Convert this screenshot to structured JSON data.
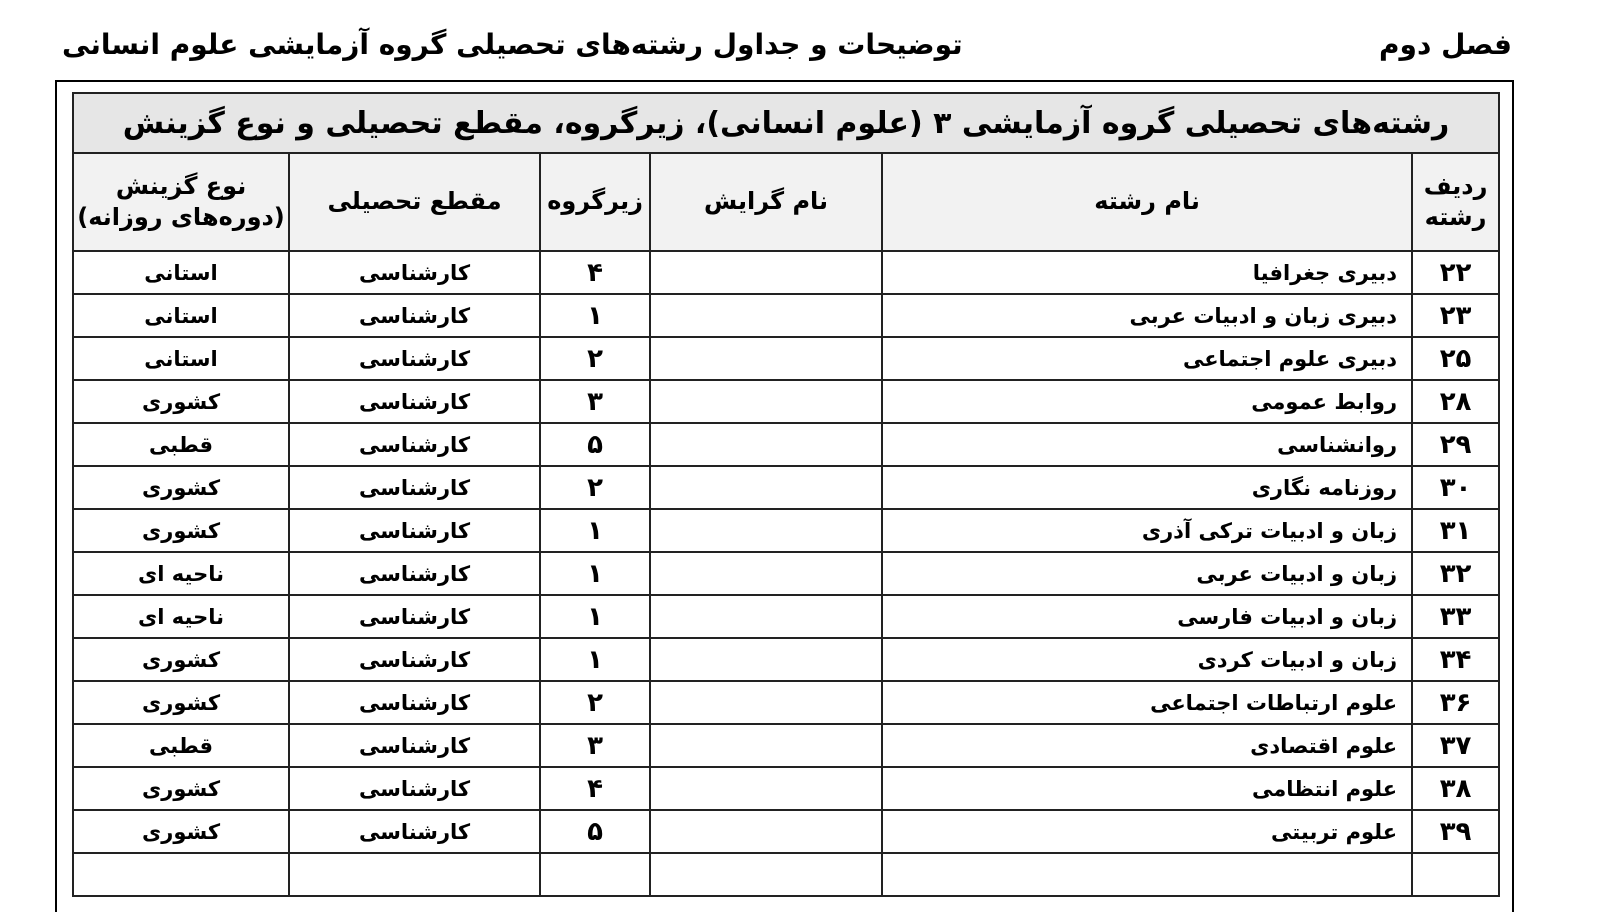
{
  "header": {
    "chapter": "فصل دوم",
    "running_title": "توضیحات و جداول رشته‌های تحصیلی گروه آزمایشی علوم انسانی"
  },
  "table": {
    "title": "رشته‌های تحصیلی گروه آزمایشی ۳ (علوم انسانی)، زیرگروه، مقطع تحصیلی و نوع گزینش",
    "columns": [
      "ردیف رشته",
      "نام رشته",
      "نام گرایش",
      "زیرگروه",
      "مقطع تحصیلی",
      "نوع گزینش (دوره‌های روزانه)"
    ],
    "rows": [
      {
        "id": "۲۲",
        "name": "دبیری جغرافیا",
        "branch": "",
        "subgroup": "۴",
        "level": "کارشناسی",
        "selection": "استانی"
      },
      {
        "id": "۲۳",
        "name": "دبیری زبان و ادبیات عربی",
        "branch": "",
        "subgroup": "۱",
        "level": "کارشناسی",
        "selection": "استانی"
      },
      {
        "id": "۲۵",
        "name": "دبیری علوم اجتماعی",
        "branch": "",
        "subgroup": "۲",
        "level": "کارشناسی",
        "selection": "استانی"
      },
      {
        "id": "۲۸",
        "name": "روابط عمومی",
        "branch": "",
        "subgroup": "۳",
        "level": "کارشناسی",
        "selection": "کشوری"
      },
      {
        "id": "۲۹",
        "name": "روانشناسی",
        "branch": "",
        "subgroup": "۵",
        "level": "کارشناسی",
        "selection": "قطبی"
      },
      {
        "id": "۳۰",
        "name": "روزنامه نگاری",
        "branch": "",
        "subgroup": "۲",
        "level": "کارشناسی",
        "selection": "کشوری"
      },
      {
        "id": "۳۱",
        "name": "زبان و ادبیات ترکی آذری",
        "branch": "",
        "subgroup": "۱",
        "level": "کارشناسی",
        "selection": "کشوری"
      },
      {
        "id": "۳۲",
        "name": "زبان و ادبیات عربی",
        "branch": "",
        "subgroup": "۱",
        "level": "کارشناسی",
        "selection": "ناحیه ای"
      },
      {
        "id": "۳۳",
        "name": "زبان و ادبیات فارسی",
        "branch": "",
        "subgroup": "۱",
        "level": "کارشناسی",
        "selection": "ناحیه ای"
      },
      {
        "id": "۳۴",
        "name": "زبان و ادبیات کردی",
        "branch": "",
        "subgroup": "۱",
        "level": "کارشناسی",
        "selection": "کشوری"
      },
      {
        "id": "۳۶",
        "name": "علوم ارتباطات اجتماعی",
        "branch": "",
        "subgroup": "۲",
        "level": "کارشناسی",
        "selection": "کشوری"
      },
      {
        "id": "۳۷",
        "name": "علوم اقتصادی",
        "branch": "",
        "subgroup": "۳",
        "level": "کارشناسی",
        "selection": "قطبی"
      },
      {
        "id": "۳۸",
        "name": "علوم انتظامی",
        "branch": "",
        "subgroup": "۴",
        "level": "کارشناسی",
        "selection": "کشوری"
      },
      {
        "id": "۳۹",
        "name": "علوم تربیتی",
        "branch": "",
        "subgroup": "۵",
        "level": "کارشناسی",
        "selection": "کشوری"
      }
    ]
  }
}
